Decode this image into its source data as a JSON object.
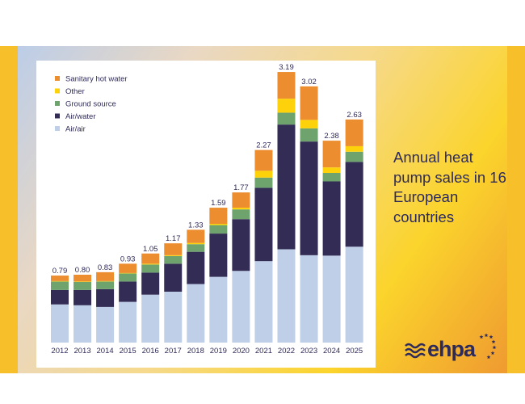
{
  "side_title": "Annual heat pump sales in 16 European countries",
  "logo_text": "ehpa",
  "chart_data": {
    "type": "bar",
    "stacked": true,
    "title": "",
    "xlabel": "",
    "ylabel": "",
    "ylim": [
      0,
      3.4
    ],
    "grid": false,
    "legend_position": "top-left",
    "categories": [
      "2012",
      "2013",
      "2014",
      "2015",
      "2016",
      "2017",
      "2018",
      "2019",
      "2020",
      "2021",
      "2022",
      "2023",
      "2024",
      "2025"
    ],
    "totals": [
      "0.79",
      "0.80",
      "0.83",
      "0.93",
      "1.05",
      "1.17",
      "1.33",
      "1.59",
      "1.77",
      "2.27",
      "3.19",
      "3.02",
      "2.38",
      "2.63"
    ],
    "series": [
      {
        "name": "Air/air",
        "color": "#bfcfe8",
        "values": [
          0.45,
          0.44,
          0.42,
          0.48,
          0.565,
          0.6,
          0.69,
          0.775,
          0.845,
          0.96,
          1.1,
          1.03,
          1.025,
          1.13
        ]
      },
      {
        "name": "Air/water",
        "color": "#332c55",
        "values": [
          0.17,
          0.18,
          0.21,
          0.24,
          0.26,
          0.33,
          0.38,
          0.51,
          0.61,
          0.865,
          1.47,
          1.34,
          0.875,
          1.0
        ]
      },
      {
        "name": "Ground source",
        "color": "#6fa36d",
        "values": [
          0.1,
          0.095,
          0.09,
          0.095,
          0.095,
          0.09,
          0.09,
          0.1,
          0.115,
          0.12,
          0.14,
          0.155,
          0.1,
          0.12
        ]
      },
      {
        "name": "Other",
        "color": "#fdd20a",
        "values": [
          0.005,
          0.005,
          0.005,
          0.005,
          0.01,
          0.01,
          0.015,
          0.015,
          0.02,
          0.08,
          0.165,
          0.1,
          0.065,
          0.065
        ]
      },
      {
        "name": "Sanitary hot water",
        "color": "#ec8d2f",
        "values": [
          0.065,
          0.08,
          0.105,
          0.11,
          0.12,
          0.14,
          0.155,
          0.19,
          0.18,
          0.245,
          0.315,
          0.395,
          0.315,
          0.315
        ]
      }
    ],
    "legend_order": [
      "Sanitary hot water",
      "Other",
      "Ground source",
      "Air/water",
      "Air/air"
    ]
  }
}
